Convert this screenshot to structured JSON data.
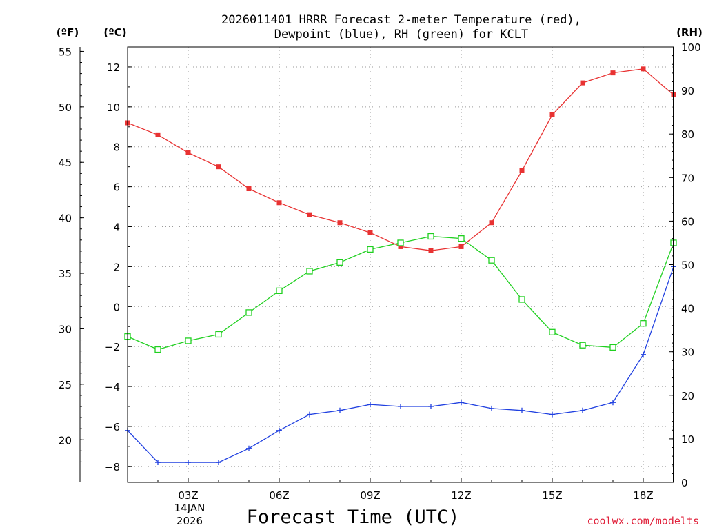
{
  "chart_data": {
    "type": "line",
    "title": [
      "2026011401 HRRR Forecast 2-meter Temperature (red),",
      "Dewpoint (blue), RH (green) for KCLT"
    ],
    "xlabel": "Forecast Time (UTC)",
    "units": {
      "fahrenheit": "(ºF)",
      "celsius": "(ºC)",
      "rh": "(RH)"
    },
    "x_hours": [
      1,
      2,
      3,
      4,
      5,
      6,
      7,
      8,
      9,
      10,
      11,
      12,
      13,
      14,
      15,
      16,
      17,
      18,
      19
    ],
    "xlim": [
      1,
      19
    ],
    "x_ticks": [
      {
        "hour": 3,
        "label": "03Z"
      },
      {
        "hour": 6,
        "label": "06Z"
      },
      {
        "hour": 9,
        "label": "09Z"
      },
      {
        "hour": 12,
        "label": "12Z"
      },
      {
        "hour": 15,
        "label": "15Z"
      },
      {
        "hour": 18,
        "label": "18Z"
      }
    ],
    "date_label": [
      "14JAN",
      "2026"
    ],
    "ylim_c": [
      -8.8,
      13.0
    ],
    "ylim_rh": [
      0,
      100
    ],
    "y_ticks_c": [
      -8,
      -6,
      -4,
      -2,
      0,
      2,
      4,
      6,
      8,
      10,
      12
    ],
    "y_ticks_f": [
      20,
      25,
      30,
      35,
      40,
      45,
      50,
      55
    ],
    "y_ticks_rh": [
      0,
      10,
      20,
      30,
      40,
      50,
      60,
      70,
      80,
      90,
      100
    ],
    "series": [
      {
        "name": "2-meter Temperature",
        "axis": "celsius",
        "color": "#e83232",
        "marker": "filled-square",
        "values": [
          9.2,
          8.6,
          7.7,
          7.0,
          5.9,
          5.2,
          4.6,
          4.2,
          3.7,
          3.0,
          2.8,
          3.0,
          4.2,
          6.8,
          9.6,
          11.2,
          11.7,
          11.9,
          10.6
        ]
      },
      {
        "name": "Dewpoint",
        "axis": "celsius",
        "color": "#2040e0",
        "marker": "plus",
        "values": [
          -6.2,
          -7.8,
          -7.8,
          -7.8,
          -7.1,
          -6.2,
          -5.4,
          -5.2,
          -4.9,
          -5.0,
          -5.0,
          -4.8,
          -5.1,
          -5.2,
          -5.4,
          -5.2,
          -4.8,
          -2.4,
          2.0
        ]
      },
      {
        "name": "RH",
        "axis": "rh",
        "color": "#20d020",
        "marker": "open-square",
        "values": [
          33.5,
          30.5,
          32.5,
          34.0,
          39.0,
          44.0,
          48.5,
          50.5,
          53.5,
          55.0,
          56.5,
          56.0,
          51.0,
          42.0,
          34.5,
          31.5,
          31.0,
          36.5,
          55.0
        ]
      }
    ],
    "credit": "coolwx.com/modelts",
    "grid": true
  }
}
